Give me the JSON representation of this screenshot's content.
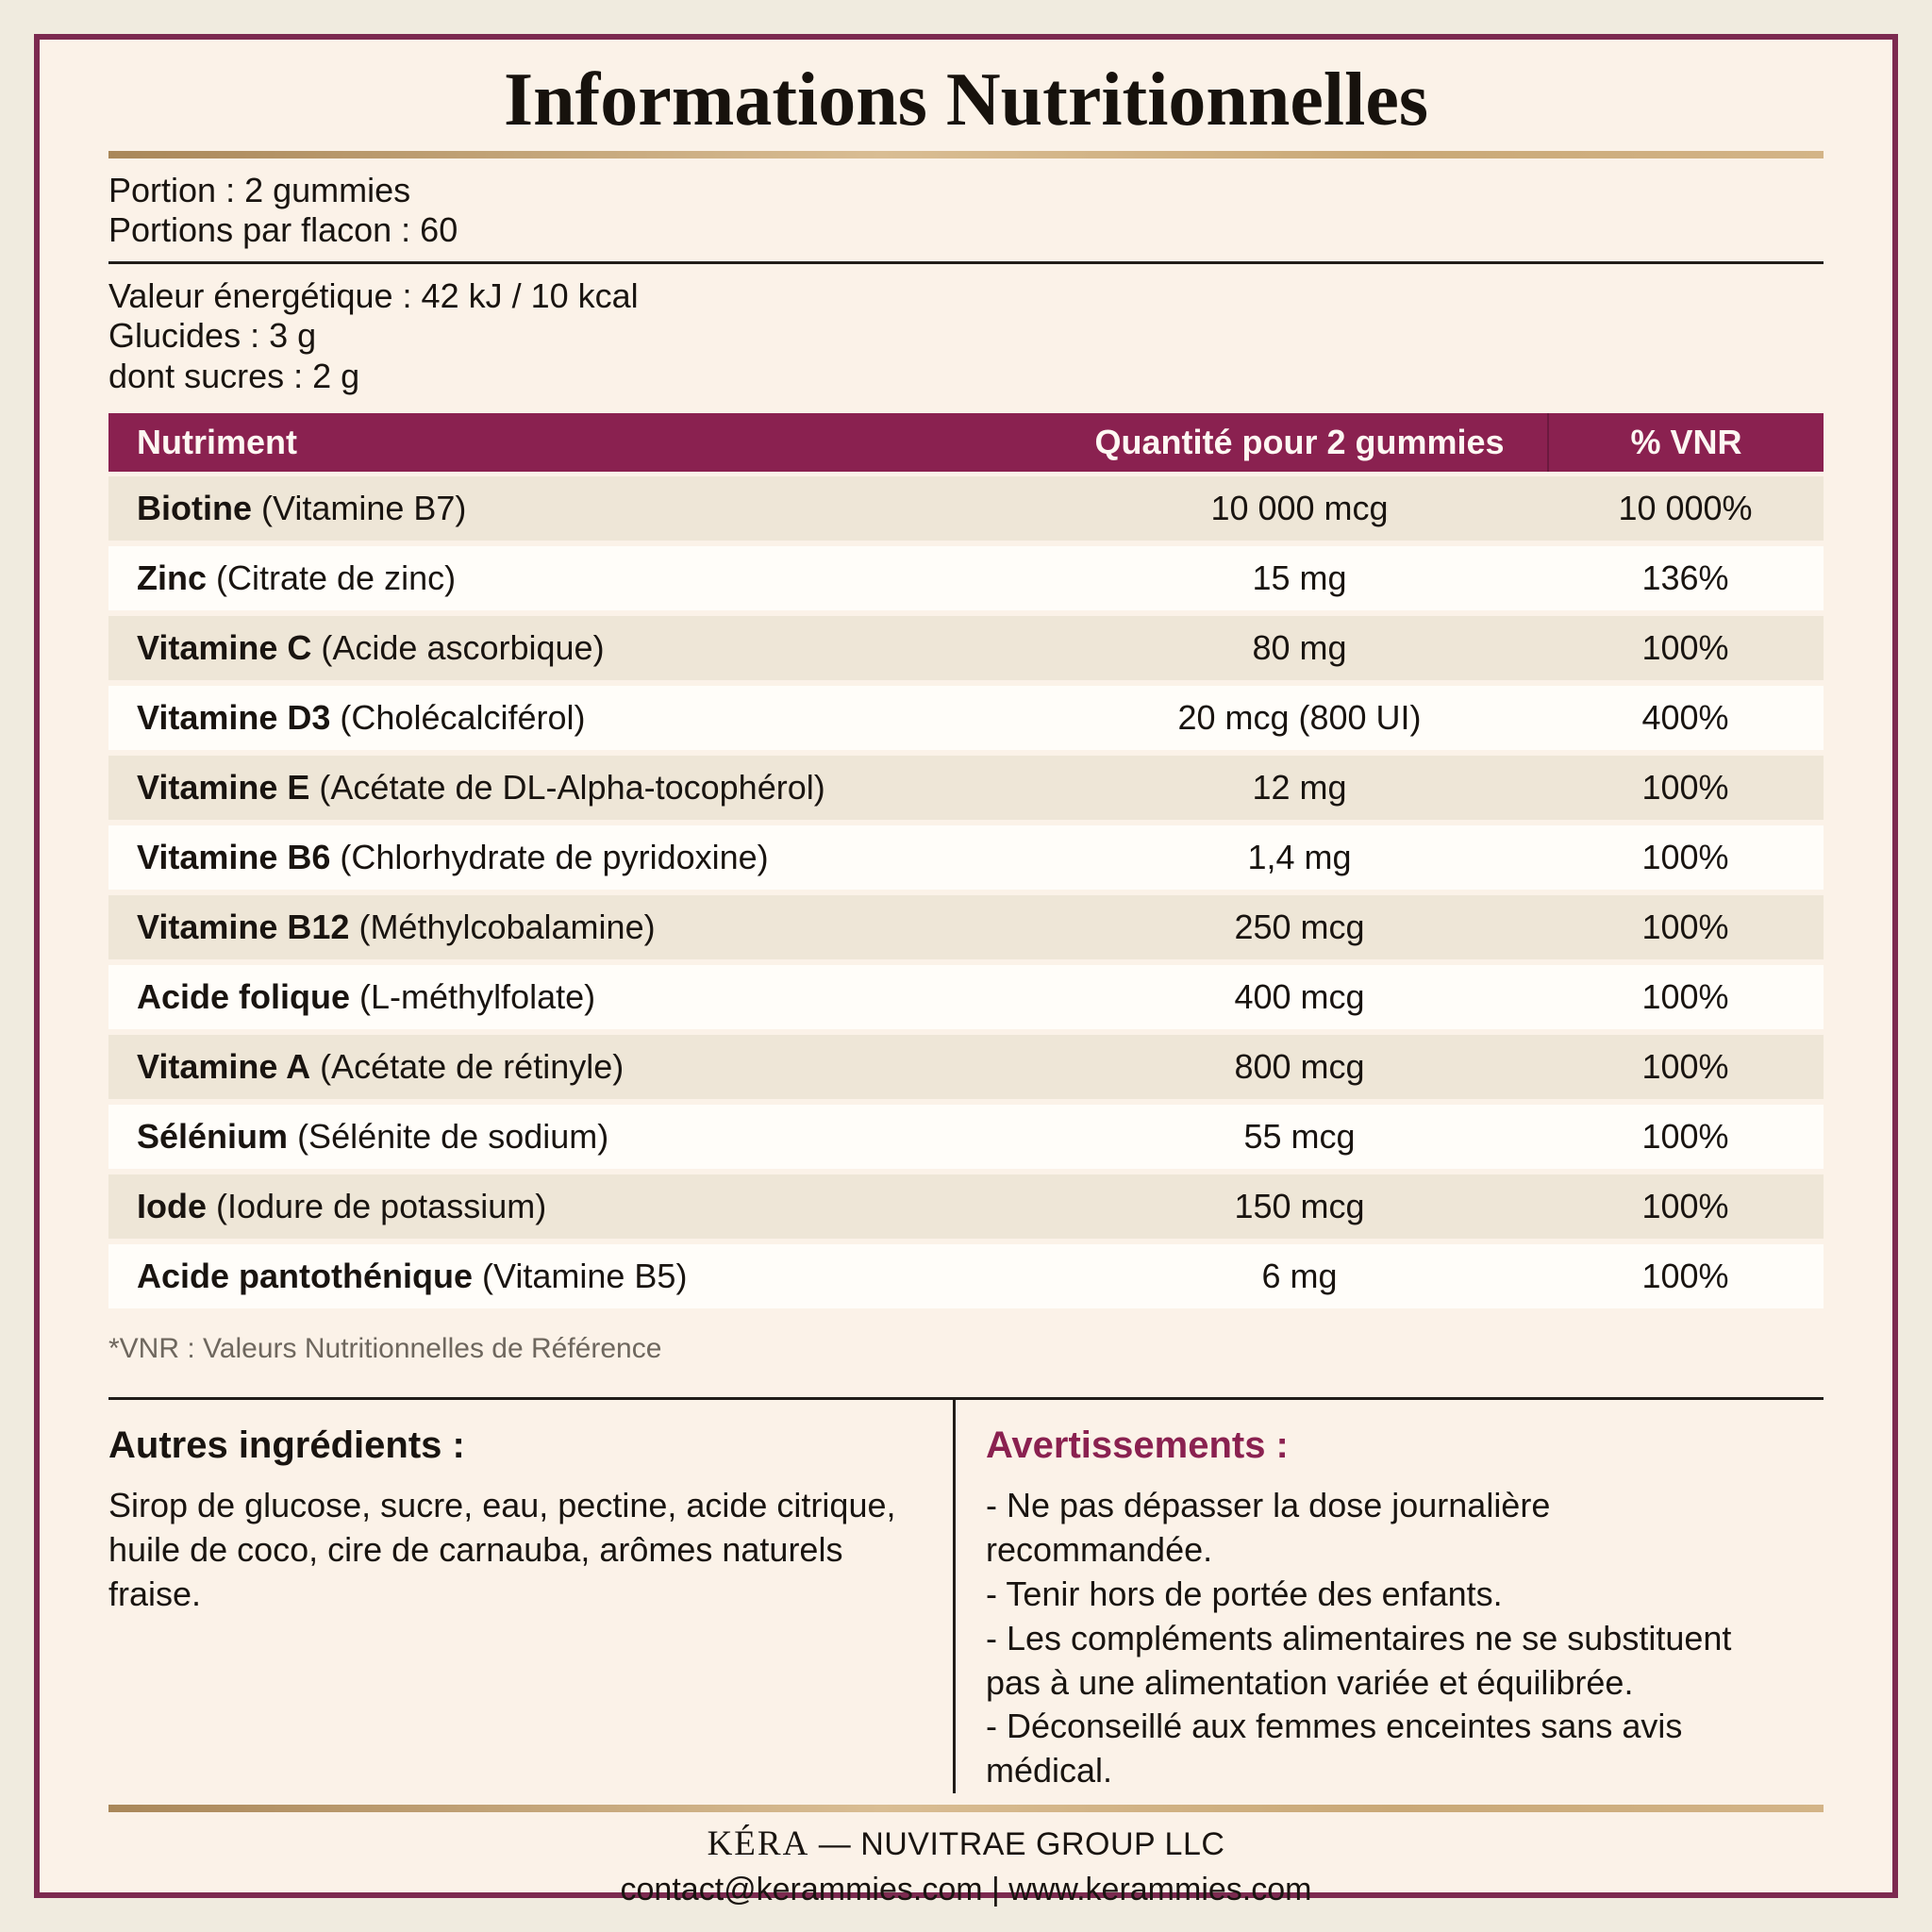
{
  "title": "Informations Nutritionnelles",
  "serving": {
    "portion": "Portion : 2 gummies",
    "per_bottle": "Portions par flacon : 60"
  },
  "energy": {
    "energy_value": "Valeur énergétique : 42 kJ / 10 kcal",
    "carbs": "Glucides : 3 g",
    "sugars": "dont sucres : 2 g"
  },
  "table": {
    "headers": [
      "Nutriment",
      "Quantité pour 2 gummies",
      "% VNR"
    ],
    "rows": [
      {
        "name": "Biotine",
        "detail": "(Vitamine B7)",
        "amount": "10 000 mcg",
        "vnr": "10 000%"
      },
      {
        "name": "Zinc",
        "detail": "(Citrate de zinc)",
        "amount": "15 mg",
        "vnr": "136%"
      },
      {
        "name": "Vitamine C",
        "detail": "(Acide ascorbique)",
        "amount": "80 mg",
        "vnr": "100%"
      },
      {
        "name": "Vitamine D3",
        "detail": "(Cholécalciférol)",
        "amount": "20 mcg (800 UI)",
        "vnr": "400%"
      },
      {
        "name": "Vitamine E",
        "detail": "(Acétate de DL-Alpha-tocophérol)",
        "amount": "12 mg",
        "vnr": "100%"
      },
      {
        "name": "Vitamine B6",
        "detail": "(Chlorhydrate de pyridoxine)",
        "amount": "1,4 mg",
        "vnr": "100%"
      },
      {
        "name": "Vitamine B12",
        "detail": "(Méthylcobalamine)",
        "amount": "250 mcg",
        "vnr": "100%"
      },
      {
        "name": "Acide folique",
        "detail": "(L-méthylfolate)",
        "amount": "400 mcg",
        "vnr": "100%"
      },
      {
        "name": "Vitamine A",
        "detail": "(Acétate de rétinyle)",
        "amount": "800 mcg",
        "vnr": "100%"
      },
      {
        "name": "Sélénium",
        "detail": "(Sélénite de sodium)",
        "amount": "55 mcg",
        "vnr": "100%"
      },
      {
        "name": "Iode",
        "detail": "(Iodure de potassium)",
        "amount": "150 mcg",
        "vnr": "100%"
      },
      {
        "name": "Acide pantothénique",
        "detail": "(Vitamine B5)",
        "amount": "6 mg",
        "vnr": "100%"
      }
    ]
  },
  "footnote": "*VNR : Valeurs Nutritionnelles de Référence",
  "ingredients": {
    "heading": "Autres ingrédients :",
    "body": "Sirop de glucose, sucre, eau, pectine, acide citrique, huile de coco, cire de carnauba, arômes naturels fraise."
  },
  "warnings": {
    "heading": "Avertissements :",
    "items": [
      "- Ne pas dépasser la dose journalière recommandée.",
      "- Tenir hors de portée des enfants.",
      "- Les compléments alimentaires ne se substituent pas à une alimentation variée et équilibrée.",
      "- Déconseillé aux femmes enceintes sans avis médical."
    ]
  },
  "footer": {
    "brand": "KÉRA",
    "company": "— NUVITRAE GROUP LLC",
    "contact": "contact@kerammies.com | www.kerammies.com"
  },
  "colors": {
    "accent_maroon": "#8a2150",
    "border_maroon": "#7c2a50",
    "gold": "#c3a06e",
    "beige_row": "#eee6d7",
    "white_row": "#fffdf9",
    "inner_bg": "#fbf2e8",
    "outer_bg": "#f0ebdf",
    "text": "#191410",
    "muted": "#6e675e"
  }
}
